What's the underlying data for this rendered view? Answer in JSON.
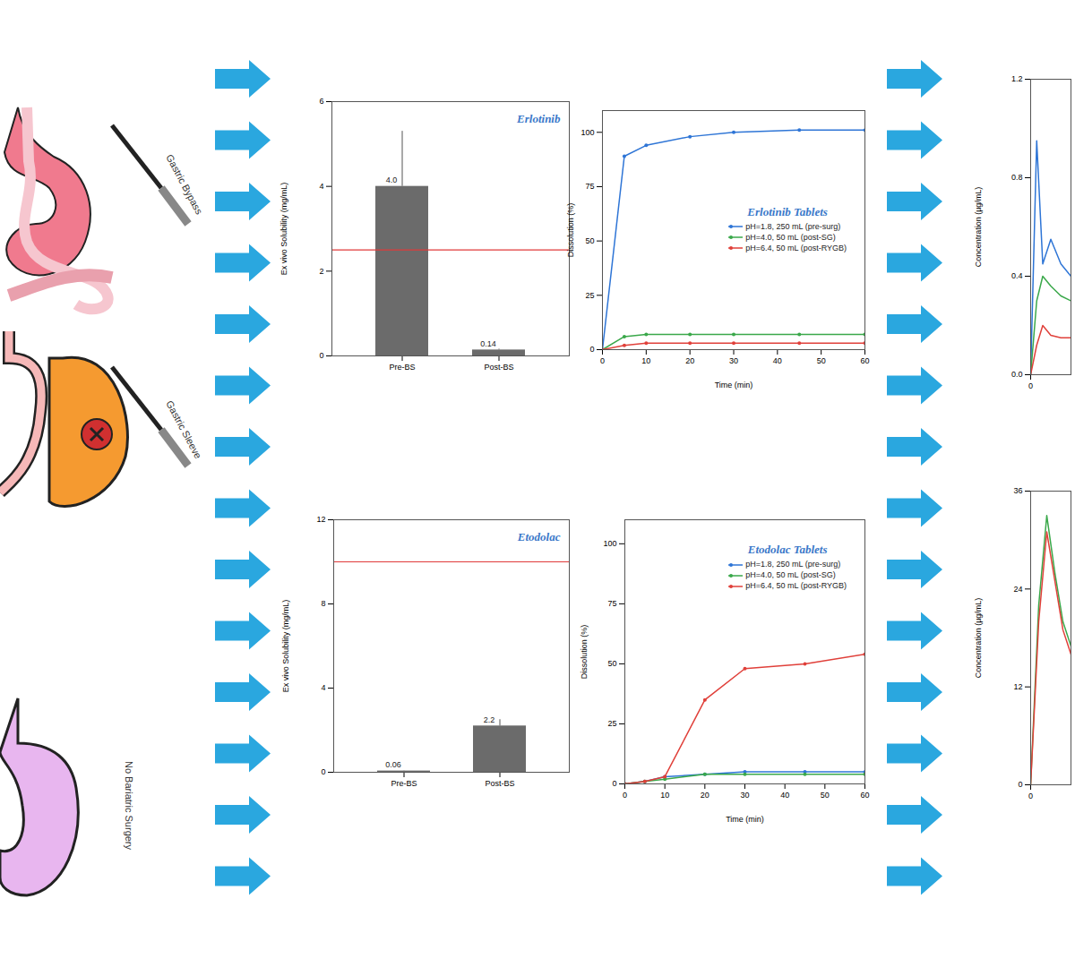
{
  "surgery_types": [
    {
      "label": "Gastric Bypass"
    },
    {
      "label": "Gastric Sleeve"
    },
    {
      "label": "No Bariatric Surgery"
    }
  ],
  "chart_data": [
    {
      "type": "bar",
      "title": "Erlotinib",
      "y_label": "Ex vivo Solubility (mg/mL)",
      "categories": [
        "Pre-BS",
        "Post-BS"
      ],
      "values": [
        4.0,
        0.14
      ],
      "value_labels": [
        "4.0",
        "0.14"
      ],
      "errors": [
        1.3,
        0.02
      ],
      "reference_line": 2.5,
      "color": "#6b6b6b",
      "ylim": [
        0,
        6
      ],
      "yticks": [
        0,
        2,
        4,
        6
      ],
      "data_labels": true
    },
    {
      "type": "line",
      "title": "Erlotinib Tablets",
      "x_label": "Time (min)",
      "y_label": "Dissolution (%)",
      "x": [
        0,
        5,
        10,
        20,
        30,
        45,
        60
      ],
      "series": [
        {
          "name": "pH=1.8, 250 mL (pre-surg)",
          "color": "#2e75d6",
          "values": [
            0,
            89,
            94,
            98,
            100,
            101,
            101
          ]
        },
        {
          "name": "pH=4.0, 50 mL (post-SG)",
          "color": "#3aa84a",
          "values": [
            0,
            6,
            7,
            7,
            7,
            7,
            7
          ]
        },
        {
          "name": "pH=6.4, 50 mL (post-RYGB)",
          "color": "#e0403a",
          "values": [
            0,
            2,
            3,
            3,
            3,
            3,
            3
          ]
        }
      ],
      "xlim": [
        0,
        60
      ],
      "xticks": [
        0,
        10,
        20,
        30,
        40,
        50,
        60
      ],
      "ylim": [
        0,
        110
      ],
      "yticks": [
        0,
        25,
        50,
        75,
        100
      ],
      "legend": "right",
      "marker": "circle"
    },
    {
      "type": "line",
      "y_label": "Concentration (µg/mL)",
      "x": [
        0,
        0.15,
        0.3,
        0.5,
        0.75,
        1
      ],
      "series": [
        {
          "color": "#2e75d6",
          "values": [
            0,
            0.95,
            0.45,
            0.55,
            0.45,
            0.4
          ]
        },
        {
          "color": "#3aa84a",
          "values": [
            0,
            0.3,
            0.4,
            0.36,
            0.32,
            0.3
          ]
        },
        {
          "color": "#e0403a",
          "values": [
            0,
            0.12,
            0.2,
            0.16,
            0.15,
            0.15
          ]
        }
      ],
      "xlim": [
        0,
        1
      ],
      "xticks": [
        0
      ],
      "ylim": [
        0,
        1.2
      ],
      "yticks": [
        {
          "value": 0,
          "label": "0.0"
        },
        {
          "value": 0.4,
          "label": "0.4"
        },
        {
          "value": 0.8,
          "label": "0.8"
        },
        {
          "value": 1.2,
          "label": "1.2"
        }
      ]
    },
    {
      "type": "bar",
      "title": "Etodolac",
      "y_label": "Ex vivo Solubility (mg/mL)",
      "categories": [
        "Pre-BS",
        "Post-BS"
      ],
      "values": [
        0.06,
        2.2
      ],
      "value_labels": [
        "0.06",
        "2.2"
      ],
      "errors": [
        0.01,
        0.3
      ],
      "reference_line": 10,
      "color": "#6b6b6b",
      "ylim": [
        0,
        12
      ],
      "yticks": [
        0,
        4,
        8,
        12
      ],
      "data_labels": true
    },
    {
      "type": "line",
      "title": "Etodolac Tablets",
      "x_label": "Time (min)",
      "y_label": "Dissolution (%)",
      "x": [
        0,
        5,
        10,
        20,
        30,
        45,
        60
      ],
      "series": [
        {
          "name": "pH=1.8, 250 mL (pre-surg)",
          "color": "#2e75d6",
          "values": [
            0,
            1,
            3,
            4,
            5,
            5,
            5
          ]
        },
        {
          "name": "pH=4.0, 50 mL (post-SG)",
          "color": "#3aa84a",
          "values": [
            0,
            1,
            2,
            4,
            4,
            4,
            4
          ]
        },
        {
          "name": "pH=6.4, 50 mL (post-RYGB)",
          "color": "#e0403a",
          "values": [
            0,
            1,
            3,
            35,
            48,
            50,
            54
          ]
        }
      ],
      "xlim": [
        0,
        60
      ],
      "xticks": [
        0,
        10,
        20,
        30,
        40,
        50,
        60
      ],
      "ylim": [
        0,
        110
      ],
      "yticks": [
        0,
        25,
        50,
        75,
        100
      ],
      "legend": "upper right",
      "marker": "circle"
    },
    {
      "type": "line",
      "y_label": "Concentration (µg/mL)",
      "x": [
        0,
        0.2,
        0.4,
        0.6,
        0.8,
        1
      ],
      "series": [
        {
          "color": "#3aa84a",
          "values": [
            0,
            22,
            33,
            26,
            20,
            17
          ]
        },
        {
          "color": "#e0403a",
          "values": [
            0,
            20,
            31,
            25,
            19,
            16
          ]
        }
      ],
      "xlim": [
        0,
        1
      ],
      "xticks": [
        0
      ],
      "ylim": [
        0,
        36
      ],
      "yticks": [
        0,
        12,
        24,
        36
      ]
    }
  ]
}
